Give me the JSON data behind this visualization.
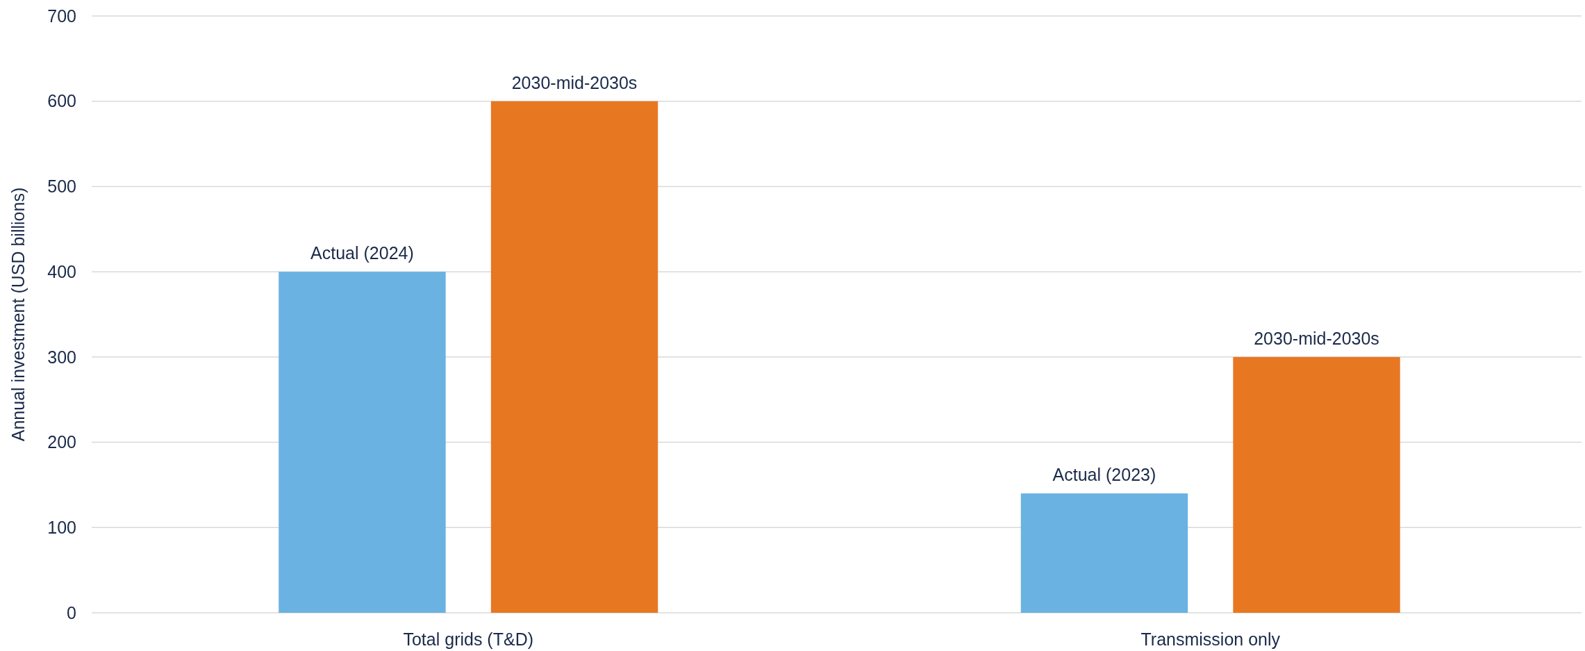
{
  "chart_data": {
    "type": "bar",
    "ylabel": "Annual investment (USD billions)",
    "categories": [
      "Total grids (T&D)",
      "Transmission only"
    ],
    "series": [
      {
        "color": "#6ab2e2",
        "values": [
          400,
          140
        ]
      },
      {
        "color": "#e87722",
        "values": [
          600,
          300
        ]
      }
    ],
    "annotations": [
      "Actual (2024)",
      "2030-mid-2030s",
      "Actual (2023)",
      "2030-mid-2030s"
    ],
    "ylim": [
      0,
      700
    ],
    "yticks": [
      0,
      100,
      200,
      300,
      400,
      500,
      600,
      700
    ],
    "grid": "y"
  }
}
